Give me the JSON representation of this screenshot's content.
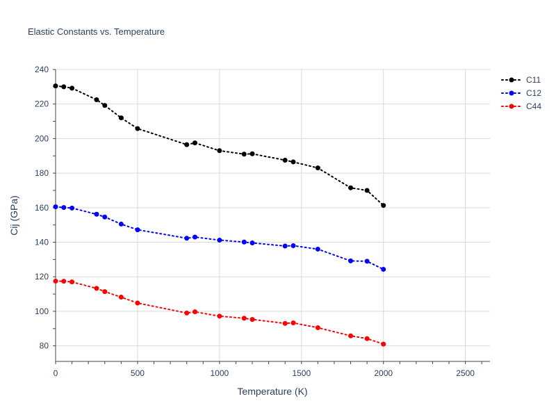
{
  "chart_data": {
    "type": "line",
    "title": "Elastic Constants vs. Temperature",
    "xlabel": "Temperature (K)",
    "ylabel": "Cij (GPa)",
    "xlim": [
      0,
      2650
    ],
    "ylim": [
      71,
      240
    ],
    "xticks": [
      0,
      500,
      1000,
      1500,
      2000,
      2500
    ],
    "yticks": [
      80,
      100,
      120,
      140,
      160,
      180,
      200,
      220,
      240
    ],
    "grid": true,
    "legend_position": "top-right",
    "line_style": "dotted",
    "x": [
      0,
      50,
      100,
      250,
      300,
      400,
      500,
      800,
      850,
      1000,
      1150,
      1200,
      1400,
      1450,
      1600,
      1800,
      1900,
      2000
    ],
    "series": [
      {
        "name": "C11",
        "color": "#000000",
        "values": [
          230.5,
          230.0,
          229.2,
          222.5,
          219.2,
          212.0,
          205.8,
          196.5,
          197.5,
          193.0,
          191.0,
          191.2,
          187.5,
          186.5,
          183.0,
          171.5,
          170.0,
          161.3
        ]
      },
      {
        "name": "C12",
        "color": "#0000ff",
        "values": [
          160.5,
          160.1,
          159.8,
          156.2,
          154.6,
          150.5,
          147.2,
          142.3,
          143.0,
          141.2,
          140.1,
          139.6,
          137.8,
          138.0,
          136.0,
          129.2,
          129.0,
          124.3
        ]
      },
      {
        "name": "C44",
        "color": "#ff0000",
        "values": [
          117.5,
          117.4,
          117.0,
          113.3,
          111.4,
          108.2,
          104.8,
          99.0,
          99.7,
          97.2,
          96.0,
          95.3,
          93.0,
          93.3,
          90.5,
          85.8,
          84.2,
          81.0
        ]
      }
    ]
  }
}
